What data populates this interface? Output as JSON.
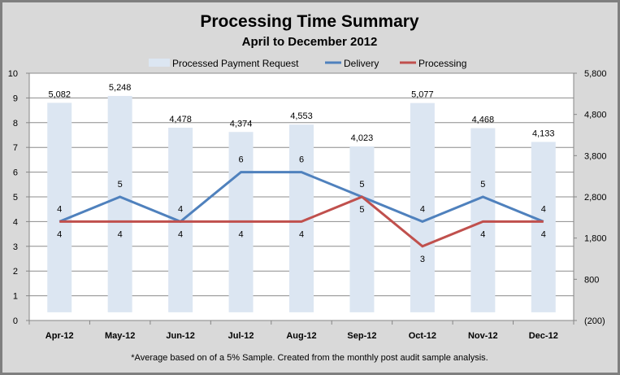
{
  "chart_data": {
    "type": "bar+line",
    "title": "Processing Time Summary",
    "subtitle": "April to December 2012",
    "footnote": "*Average based on of a 5% Sample. Created from the monthly post audit sample analysis.",
    "categories": [
      "Apr-12",
      "May-12",
      "Jun-12",
      "Jul-12",
      "Aug-12",
      "Sep-12",
      "Oct-12",
      "Nov-12",
      "Dec-12"
    ],
    "series": [
      {
        "name": "Processed Payment Request",
        "type": "bar",
        "axis": "right",
        "color": "#dce6f2",
        "values": [
          5082,
          5248,
          4478,
          4374,
          4553,
          4023,
          5077,
          4468,
          4133
        ],
        "labels": [
          "5,082",
          "5,248",
          "4,478",
          "4,374",
          "4,553",
          "4,023",
          "5,077",
          "4,468",
          "4,133"
        ]
      },
      {
        "name": "Delivery",
        "type": "line",
        "axis": "left",
        "color": "#4f81bd",
        "values": [
          4,
          5,
          4,
          6,
          6,
          5,
          4,
          5,
          4
        ]
      },
      {
        "name": "Processing",
        "type": "line",
        "axis": "left",
        "color": "#c0504d",
        "values": [
          4,
          4,
          4,
          4,
          4,
          5,
          3,
          4,
          4
        ]
      }
    ],
    "left_axis": {
      "range": [
        0,
        10
      ],
      "ticks": [
        "0",
        "1",
        "2",
        "3",
        "4",
        "5",
        "6",
        "7",
        "8",
        "9",
        "10"
      ]
    },
    "right_axis": {
      "range": [
        -200,
        5800
      ],
      "ticks": [
        "(200)",
        "800",
        "1,800",
        "2,800",
        "3,800",
        "4,800",
        "5,800"
      ]
    },
    "grid": true,
    "legend": "top"
  }
}
